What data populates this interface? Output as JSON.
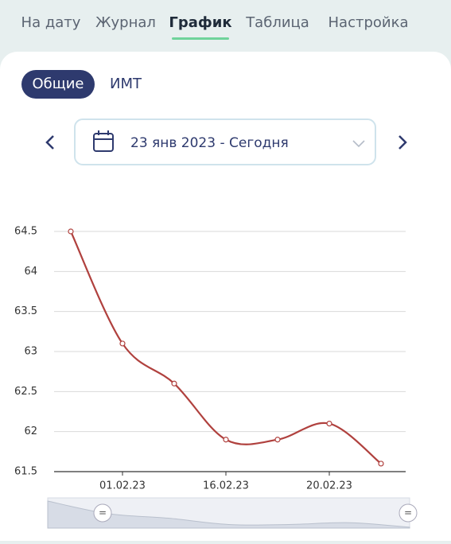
{
  "tabs": [
    "На дату",
    "Журнал",
    "График",
    "Таблица",
    "Настройка"
  ],
  "filters": [
    "Общие",
    "ИМТ"
  ],
  "date_range": "23 янв 2023 - Сегодня",
  "chart_data": {
    "type": "line",
    "categories": [
      null,
      "01.02.23",
      null,
      "16.02.23",
      null,
      "20.02.23",
      null
    ],
    "series": [
      {
        "color": "#b0413e",
        "values": [
          64.5,
          63.1,
          62.6,
          61.9,
          61.9,
          62.1,
          61.6
        ]
      }
    ],
    "ylim": [
      61.5,
      64.5
    ],
    "yticks": [
      61.5,
      62,
      62.5,
      63,
      63.5,
      64,
      64.5
    ],
    "grid": true
  }
}
